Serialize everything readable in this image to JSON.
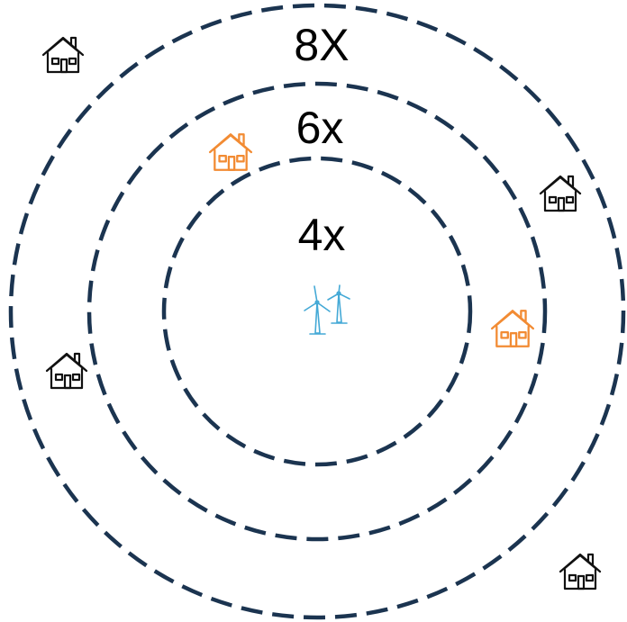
{
  "colors": {
    "ring_stroke": "#1b3450",
    "label_text": "#000000",
    "house_plain": "#111111",
    "house_highlight": "#f28b33",
    "turbine": "#44a9d6"
  },
  "rings": {
    "outer": {
      "label": "8X"
    },
    "middle": {
      "label": "6x"
    },
    "inner": {
      "label": "4x"
    }
  },
  "icons": {
    "center": "wind-turbine-icon",
    "houses": [
      {
        "name": "house-icon",
        "ring": "beyond-middle",
        "highlighted": false
      },
      {
        "name": "house-icon",
        "ring": "within-middle",
        "highlighted": true
      },
      {
        "name": "house-icon",
        "ring": "beyond-middle",
        "highlighted": false
      },
      {
        "name": "house-icon",
        "ring": "within-middle",
        "highlighted": true
      },
      {
        "name": "house-icon",
        "ring": "beyond-middle",
        "highlighted": false
      },
      {
        "name": "house-icon",
        "ring": "beyond-outer",
        "highlighted": false
      }
    ]
  }
}
